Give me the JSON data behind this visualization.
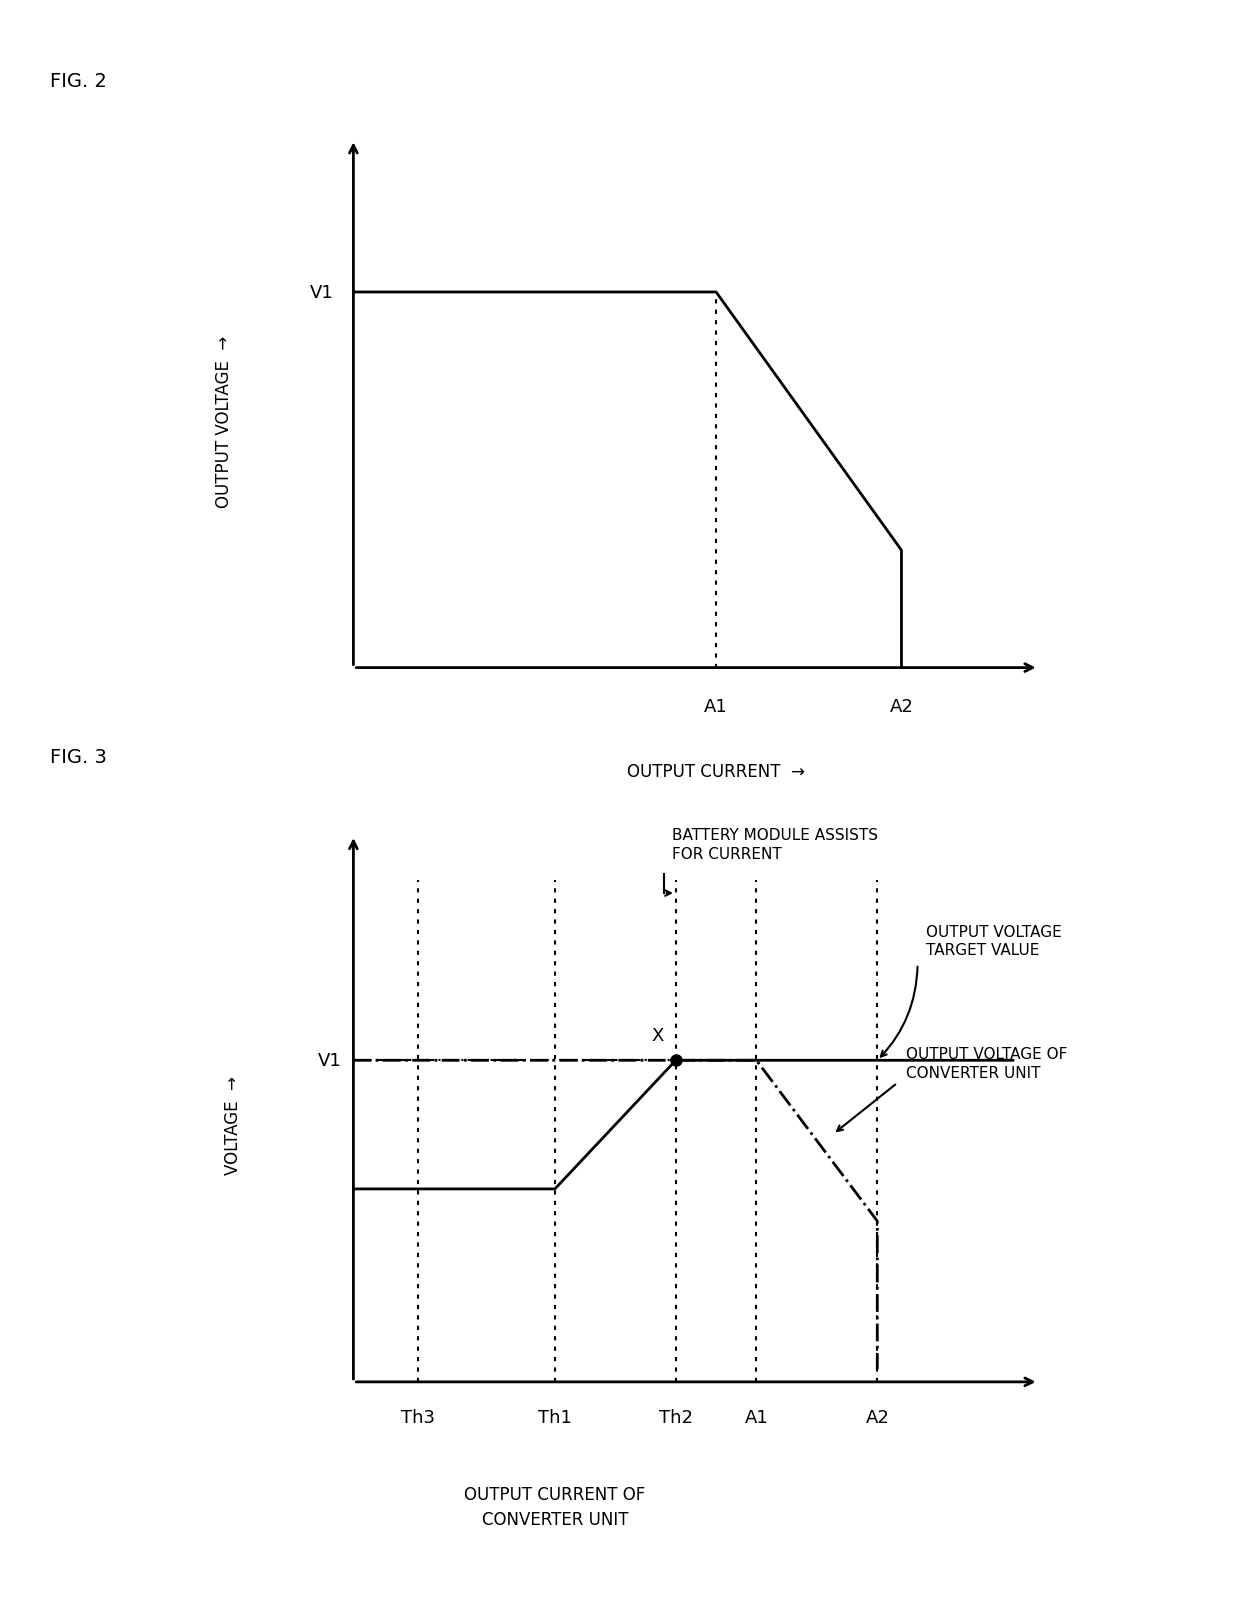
{
  "background_color": "#ffffff",
  "line_color": "#000000",
  "lw_main": 2.0,
  "lw_thin": 1.5,
  "fontsize_fig_label": 14,
  "fontsize_axis_label": 12,
  "fontsize_tick_label": 13,
  "fontsize_annot": 11,
  "fig2_title": "FIG. 2",
  "fig2_ylabel": "OUTPUT VOLTAGE",
  "fig2_xlabel": "OUTPUT CURRENT",
  "fig2_v1": "V1",
  "fig2_a1": "A1",
  "fig2_a2": "A2",
  "fig3_title": "FIG. 3",
  "fig3_ylabel": "VOLTAGE",
  "fig3_xlabel": "OUTPUT CURRENT OF\nCONVERTER UNIT",
  "fig3_v1": "V1",
  "fig3_th3": "Th3",
  "fig3_th1": "Th1",
  "fig3_th2": "Th2",
  "fig3_a1": "A1",
  "fig3_a2": "A2",
  "fig3_x": "X",
  "fig3_ann1": "BATTERY MODULE ASSISTS\nFOR CURRENT",
  "fig3_ann2": "OUTPUT VOLTAGE\nTARGET VALUE",
  "fig3_ann3": "OUTPUT VOLTAGE OF\nCONVERTER UNIT"
}
